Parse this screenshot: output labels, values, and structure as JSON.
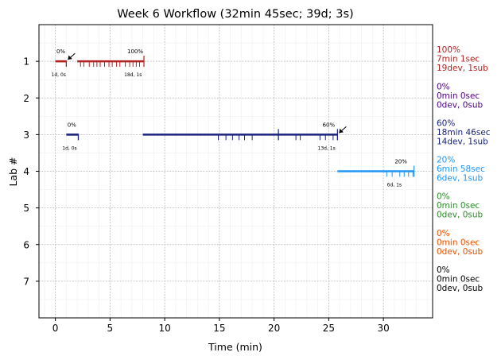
{
  "chart_data": {
    "type": "timeline",
    "title": "Week 6 Workflow (32min 45sec; 39d; 3s)",
    "xlabel": "Time (min)",
    "ylabel": "Lab #",
    "xlim": [
      -1.5,
      34.5
    ],
    "ylim": [
      8.0,
      0.0
    ],
    "xticks": [
      0,
      5,
      10,
      15,
      20,
      25,
      30
    ],
    "yticks": [
      1,
      2,
      3,
      4,
      5,
      6,
      7
    ],
    "grid": true,
    "series": [
      {
        "lab": 1,
        "color": "#b22222",
        "segments": [
          [
            0.0,
            1.0
          ],
          [
            2.0,
            8.1
          ]
        ],
        "start_marker": 1.0,
        "ticks": [
          2.3,
          2.6,
          3.1,
          3.5,
          3.8,
          4.1,
          4.5,
          4.9,
          5.2,
          5.6,
          5.9,
          6.4,
          6.8,
          7.1,
          7.4,
          7.7,
          8.1
        ],
        "tall_ticks": [
          8.1
        ],
        "start_pct": "0%",
        "start_label": "1d, 0s",
        "start_label_x": 0.3,
        "start_pct_x": 0.5,
        "end_pct": "100%",
        "end_label": "18d, 1s",
        "end_label_x": 7.1,
        "end_pct_x": 7.3,
        "arrow_to": 1.0,
        "side": [
          "100%",
          "7min 1sec",
          "19dev, 1sub"
        ]
      },
      {
        "lab": 2,
        "color": "#4b0082",
        "segments": [],
        "ticks": [],
        "tall_ticks": [],
        "side": [
          "0%",
          "0min 0sec",
          "0dev, 0sub"
        ]
      },
      {
        "lab": 3,
        "color": "#1a237e",
        "segments": [
          [
            1.0,
            2.1
          ],
          [
            8.0,
            25.8
          ]
        ],
        "start_marker": 2.1,
        "ticks": [
          14.9,
          15.6,
          16.2,
          16.8,
          17.3,
          18.0,
          20.4,
          22.0,
          22.4,
          24.2,
          24.7,
          25.4,
          25.8
        ],
        "tall_ticks": [
          20.4,
          25.8
        ],
        "start_pct": "0%",
        "start_label": "1d, 0s",
        "start_label_x": 1.3,
        "start_pct_x": 1.5,
        "end_pct": "60%",
        "end_label": "13d, 1s",
        "end_label_x": 24.8,
        "end_pct_x": 25.0,
        "arrow_to": 25.8,
        "side": [
          "60%",
          "18min 46sec",
          "14dev, 1sub"
        ]
      },
      {
        "lab": 4,
        "color": "#2196f3",
        "segments": [
          [
            25.8,
            32.8
          ]
        ],
        "ticks": [
          30.3,
          30.8,
          31.5,
          31.9,
          32.3,
          32.7
        ],
        "tall_ticks": [
          32.8
        ],
        "end_pct": "20%",
        "end_label": "6d, 1s",
        "end_label_x": 31.0,
        "end_pct_x": 31.6,
        "side": [
          "20%",
          "6min 58sec",
          "6dev, 1sub"
        ]
      },
      {
        "lab": 5,
        "color": "#2e8b2e",
        "segments": [],
        "ticks": [],
        "tall_ticks": [],
        "side": [
          "0%",
          "0min 0sec",
          "0dev, 0sub"
        ]
      },
      {
        "lab": 6,
        "color": "#e65100",
        "segments": [],
        "ticks": [],
        "tall_ticks": [],
        "side": [
          "0%",
          "0min 0sec",
          "0dev, 0sub"
        ]
      },
      {
        "lab": 7,
        "color": "#000000",
        "segments": [],
        "ticks": [],
        "tall_ticks": [],
        "side": [
          "0%",
          "0min 0sec",
          "0dev, 0sub"
        ]
      }
    ]
  }
}
